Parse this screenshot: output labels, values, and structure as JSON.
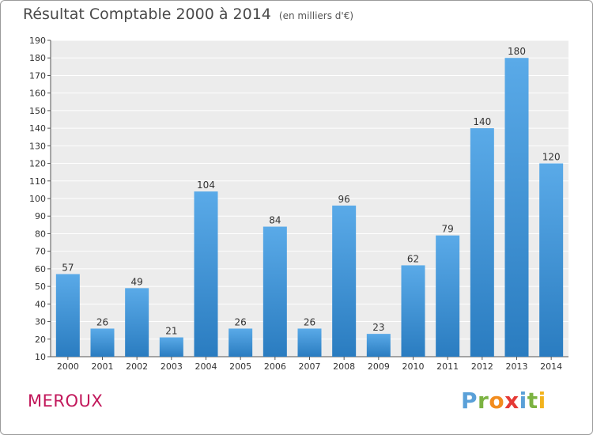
{
  "title": "Résultat Comptable 2000 à 2014",
  "subtitle": "(en milliers d'€)",
  "place": "MEROUX",
  "logo": {
    "letters": [
      {
        "ch": "P",
        "color": "#5aa0d8"
      },
      {
        "ch": "r",
        "color": "#7cb342"
      },
      {
        "ch": "o",
        "color": "#f28c1e"
      },
      {
        "ch": "x",
        "color": "#e53935"
      },
      {
        "ch": "i",
        "color": "#5aa0d8"
      },
      {
        "ch": "t",
        "color": "#7cb342"
      },
      {
        "ch": "i",
        "color": "#f2b31e"
      }
    ]
  },
  "colors": {
    "bar_light": "#5aaae8",
    "bar_dark": "#2a7cc0",
    "place": "#c2185b"
  },
  "chart_data": {
    "type": "bar",
    "title": "Résultat Comptable 2000 à 2014",
    "xlabel": "",
    "ylabel": "",
    "ylim": [
      10,
      190
    ],
    "yticks": [
      10,
      20,
      30,
      40,
      50,
      60,
      70,
      80,
      90,
      100,
      110,
      120,
      130,
      140,
      150,
      160,
      170,
      180,
      190
    ],
    "grid": true,
    "categories": [
      "2000",
      "2001",
      "2002",
      "2003",
      "2004",
      "2005",
      "2006",
      "2007",
      "2008",
      "2009",
      "2010",
      "2011",
      "2012",
      "2013",
      "2014"
    ],
    "values": [
      57,
      26,
      49,
      21,
      104,
      26,
      84,
      26,
      96,
      23,
      62,
      79,
      140,
      180,
      120
    ]
  }
}
